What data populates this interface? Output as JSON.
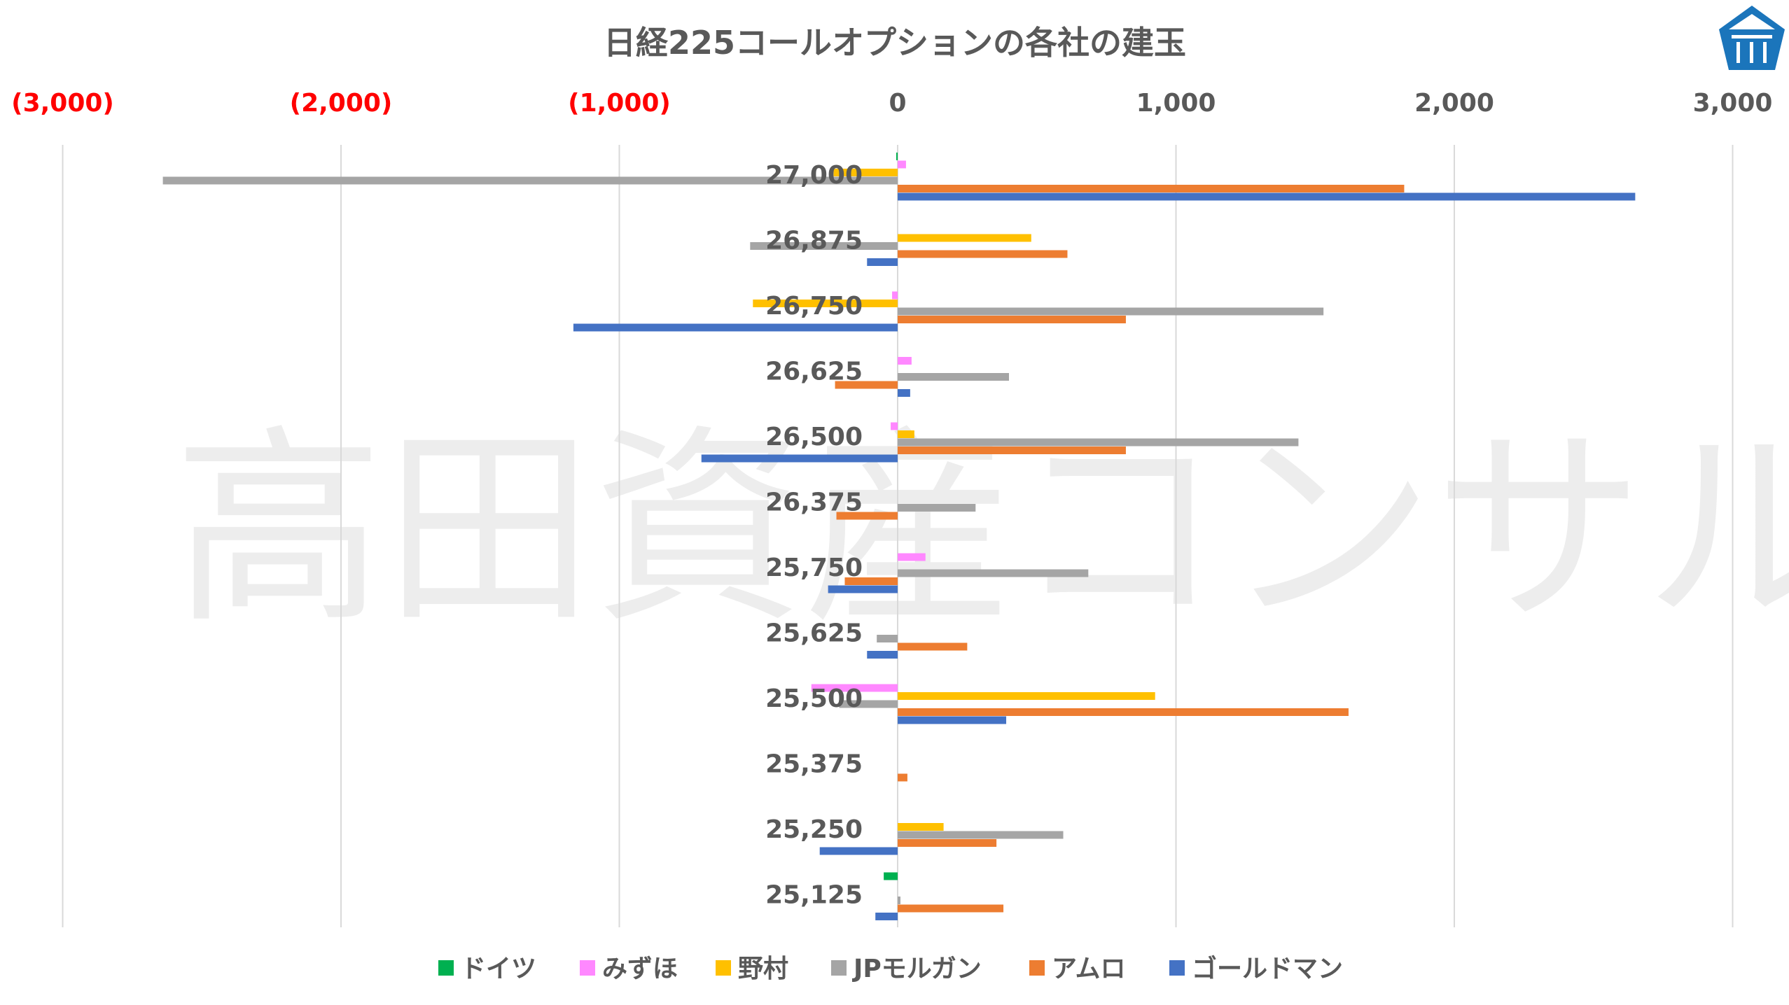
{
  "chart_data": {
    "type": "bar",
    "orientation": "horizontal",
    "title": "日経225コールオプションの各社の建玉",
    "xlim": [
      -3000,
      3000
    ],
    "x_ticks": [
      -3000,
      -2000,
      -1000,
      0,
      1000,
      2000,
      3000
    ],
    "x_tick_labels": [
      "(3,000)",
      "(2,000)",
      "(1,000)",
      "0",
      "1,000",
      "2,000",
      "3,000"
    ],
    "negative_tick_color": "#ff0000",
    "grid": true,
    "legend_position": "bottom",
    "categories": [
      "27,000",
      "26,875",
      "26,750",
      "26,625",
      "26,500",
      "26,375",
      "25,750",
      "25,625",
      "25,500",
      "25,375",
      "25,250",
      "25,125"
    ],
    "series": [
      {
        "name": "ドイツ",
        "color": "#00b050",
        "values": [
          -5,
          0,
          0,
          0,
          0,
          0,
          0,
          0,
          0,
          0,
          0,
          -50
        ]
      },
      {
        "name": "みずほ",
        "color": "#ff88ff",
        "values": [
          30,
          0,
          -20,
          50,
          -25,
          0,
          100,
          0,
          -310,
          0,
          0,
          0
        ]
      },
      {
        "name": "野村",
        "color": "#ffc000",
        "values": [
          -230,
          480,
          -520,
          0,
          60,
          0,
          0,
          0,
          925,
          0,
          165,
          0
        ]
      },
      {
        "name": "JPモルガン",
        "color": "#a5a5a5",
        "values": [
          -2640,
          -530,
          1530,
          400,
          1440,
          280,
          685,
          -75,
          -210,
          0,
          595,
          10
        ]
      },
      {
        "name": "アムロ",
        "color": "#ed7d31",
        "values": [
          1820,
          610,
          820,
          -225,
          820,
          -220,
          -190,
          250,
          1620,
          35,
          355,
          380
        ]
      },
      {
        "name": "ゴールドマン",
        "color": "#4472c4",
        "values": [
          2650,
          -110,
          -1165,
          45,
          -705,
          0,
          -250,
          -110,
          390,
          0,
          -280,
          -80
        ]
      }
    ]
  },
  "watermark": {
    "text": "高田資産コンサル"
  },
  "logo": {
    "icon": "pavilion-logo-icon",
    "color": "#1b75bb"
  }
}
